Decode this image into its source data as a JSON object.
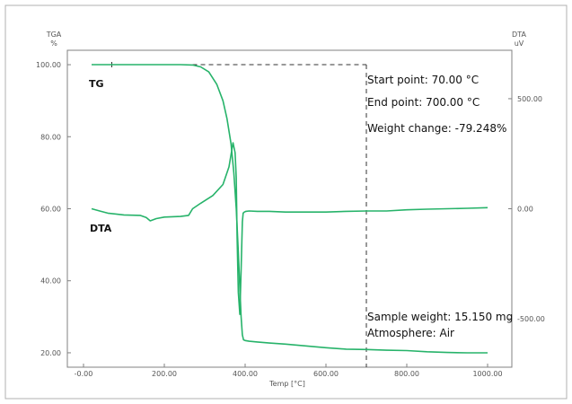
{
  "chart_data": {
    "type": "line",
    "xlabel": "Temp [°C]",
    "left_axis": {
      "title": "TGA",
      "unit": "%",
      "ylim": [
        16,
        104
      ],
      "ticks": [
        20,
        40,
        60,
        80,
        100
      ],
      "tick_labels": [
        "20.00",
        "40.00",
        "60.00",
        "80.00",
        "100.00"
      ]
    },
    "right_axis": {
      "title": "DTA",
      "unit": "uV",
      "ylim": [
        -720,
        720
      ],
      "ticks": [
        -500,
        0,
        500
      ],
      "tick_labels": [
        "-500.00",
        "0.00",
        "500.00"
      ]
    },
    "xlim": [
      -40,
      1060
    ],
    "x_ticks": [
      0,
      200,
      400,
      600,
      800,
      1000
    ],
    "x_tick_labels": [
      "-0.00",
      "200.00",
      "400.00",
      "600.00",
      "800.00",
      "1000.00"
    ],
    "grid": false,
    "accent_color": "#27b36a",
    "series": [
      {
        "name": "TG",
        "axis": "left",
        "x": [
          20,
          60,
          100,
          150,
          200,
          240,
          270,
          290,
          310,
          330,
          345,
          355,
          365,
          372,
          378,
          383,
          387,
          390,
          393,
          396,
          400,
          410,
          430,
          460,
          500,
          550,
          600,
          650,
          700,
          750,
          800,
          850,
          900,
          950,
          1000
        ],
        "values": [
          100,
          100,
          100,
          100,
          100,
          100,
          99.9,
          99.4,
          98,
          94.5,
          90,
          85,
          78,
          70,
          60,
          48,
          38,
          30,
          25,
          23.6,
          23.4,
          23.2,
          23.0,
          22.7,
          22.4,
          21.9,
          21.4,
          21.0,
          20.9,
          20.7,
          20.6,
          20.3,
          20.1,
          20.0,
          20.0
        ]
      },
      {
        "name": "DTA",
        "axis": "right",
        "x": [
          20,
          40,
          60,
          100,
          140,
          155,
          165,
          180,
          200,
          240,
          260,
          270,
          290,
          320,
          345,
          360,
          370,
          375,
          378,
          380,
          383,
          387,
          390,
          393,
          395,
          398,
          402,
          410,
          430,
          460,
          500,
          550,
          600,
          650,
          700,
          750,
          800,
          850,
          900,
          950,
          1000
        ],
        "values": [
          0,
          -10,
          -20,
          -28,
          -30,
          -40,
          -55,
          -45,
          -38,
          -35,
          -30,
          0,
          25,
          60,
          110,
          190,
          300,
          255,
          140,
          -120,
          -380,
          -480,
          -280,
          -60,
          -20,
          -15,
          -12,
          -10,
          -12,
          -12,
          -15,
          -15,
          -15,
          -12,
          -10,
          -10,
          -5,
          -2,
          0,
          2,
          5
        ]
      }
    ],
    "series_labels": [
      "TG",
      "DTA"
    ],
    "dashed_marker_box": {
      "x_start": 70,
      "x_end": 700,
      "y_top": 100
    },
    "annotations": [
      "Start point: 70.00 °C",
      "End point: 700.00 °C",
      "Weight change: -79.248%",
      "Sample weight: 15.150 mg",
      "Atmosphere: Air"
    ]
  }
}
